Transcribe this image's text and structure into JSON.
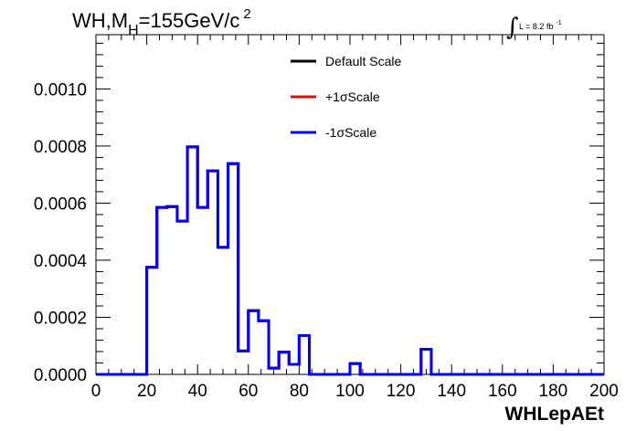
{
  "chart_data": {
    "type": "line",
    "title": {
      "prefix": "WH,M",
      "subscript": "H",
      "middle": "=155GeV/c",
      "superscript": "2"
    },
    "lumi": {
      "integral_sign": "∫",
      "text": "L = 8.2 fb",
      "superscript": "-1"
    },
    "xlabel": "WHLepAEt",
    "ylabel": "",
    "xlim": [
      0,
      200
    ],
    "ylim": [
      0,
      0.00119
    ],
    "x_ticks": [
      0,
      20,
      40,
      60,
      80,
      100,
      120,
      140,
      160,
      180,
      200
    ],
    "x_tick_labels": [
      "0",
      "20",
      "40",
      "60",
      "80",
      "100",
      "120",
      "140",
      "160",
      "180",
      "200"
    ],
    "y_ticks": [
      0,
      0.0002,
      0.0004,
      0.0006,
      0.0008,
      0.001
    ],
    "y_tick_labels": [
      "0.0000",
      "0.0002",
      "0.0004",
      "0.0006",
      "0.0008",
      "0.0010"
    ],
    "bin_edges": [
      0,
      4,
      8,
      12,
      16,
      20,
      24,
      28,
      32,
      36,
      40,
      44,
      48,
      52,
      56,
      60,
      64,
      68,
      72,
      76,
      80,
      84,
      88,
      92,
      96,
      100,
      104,
      108,
      112,
      116,
      120,
      124,
      128,
      132,
      136,
      140,
      144,
      148,
      152,
      156,
      160,
      164,
      168,
      172,
      176,
      180,
      184,
      188,
      192,
      196,
      200
    ],
    "series": [
      {
        "name": "Default Scale",
        "color": "#000000",
        "values": [
          0,
          0,
          0,
          0,
          0,
          0.000375,
          0.000585,
          0.000588,
          0.000537,
          0.000797,
          0.000585,
          0.000713,
          0.000445,
          0.000738,
          8.2e-05,
          0.000223,
          0.000188,
          2.2e-05,
          7.8e-05,
          3.5e-05,
          0.000136,
          0,
          0,
          0,
          0,
          3.8e-05,
          0,
          0,
          0,
          0,
          0,
          0,
          8.8e-05,
          0,
          0,
          0,
          0,
          0,
          0,
          0,
          0,
          0,
          0,
          0,
          0,
          0,
          0,
          0,
          0,
          0
        ]
      },
      {
        "name": "+1σScale",
        "color": "#ff0000",
        "values": [
          0,
          0,
          0,
          0,
          0,
          0.000375,
          0.000585,
          0.000588,
          0.000537,
          0.000797,
          0.000585,
          0.000713,
          0.000445,
          0.000738,
          8.2e-05,
          0.000223,
          0.000188,
          2.2e-05,
          7.8e-05,
          3.5e-05,
          0.000136,
          0,
          0,
          0,
          0,
          3.8e-05,
          0,
          0,
          0,
          0,
          0,
          0,
          8.8e-05,
          0,
          0,
          0,
          0,
          0,
          0,
          0,
          0,
          0,
          0,
          0,
          0,
          0,
          0,
          0,
          0,
          0
        ]
      },
      {
        "name": "-1σScale",
        "color": "#0000ff",
        "values": [
          0,
          0,
          0,
          0,
          0,
          0.000375,
          0.000585,
          0.000588,
          0.000537,
          0.000797,
          0.000585,
          0.000713,
          0.000445,
          0.000738,
          8.2e-05,
          0.000223,
          0.000188,
          2.2e-05,
          7.8e-05,
          3.5e-05,
          0.000136,
          0,
          0,
          0,
          0,
          3.8e-05,
          0,
          0,
          0,
          0,
          0,
          0,
          8.8e-05,
          0,
          0,
          0,
          0,
          0,
          0,
          0,
          0,
          0,
          0,
          0,
          0,
          0,
          0,
          0,
          0,
          0
        ]
      }
    ],
    "legend_position": "top-center",
    "grid": false
  }
}
